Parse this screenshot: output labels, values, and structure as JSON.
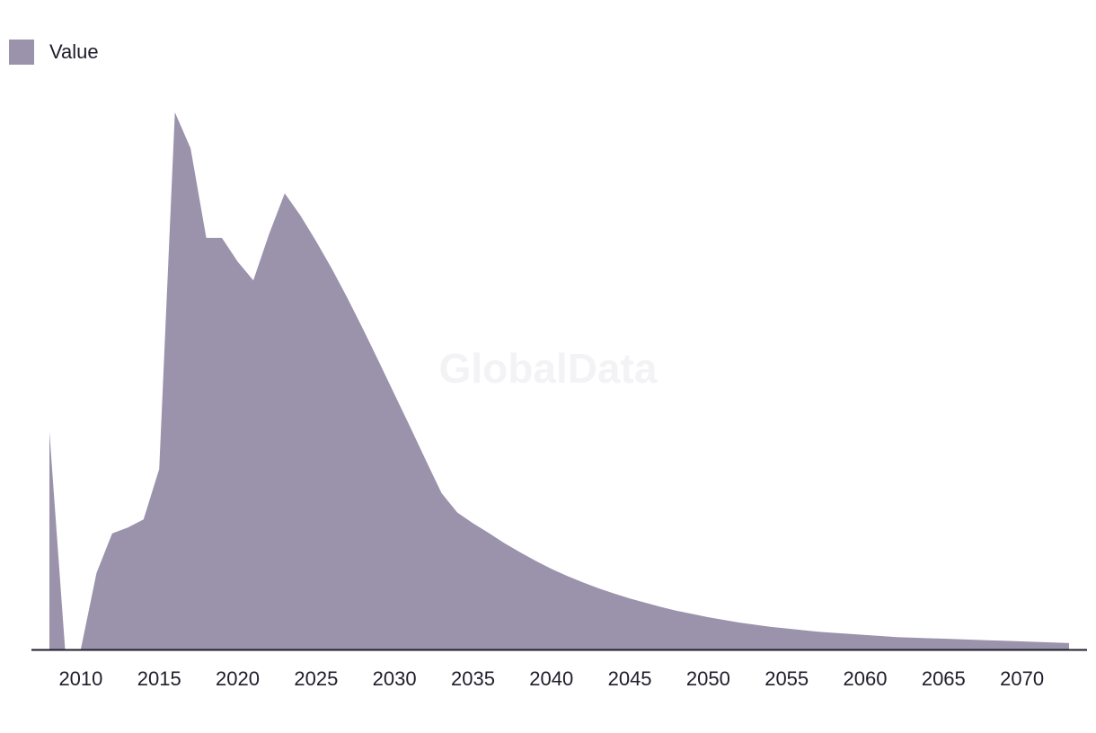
{
  "watermark": "GlobalData",
  "colors": {
    "area": "#9b92ab",
    "axis": "#1f1d2b"
  },
  "chart_data": {
    "type": "area",
    "legend": {
      "position": "top-left",
      "entries": [
        "Value"
      ]
    },
    "grid": false,
    "xlim": [
      2008,
      2073
    ],
    "ylim": [
      0,
      100
    ],
    "x_ticks": [
      2010,
      2015,
      2020,
      2025,
      2030,
      2035,
      2040,
      2045,
      2050,
      2055,
      2060,
      2065,
      2070
    ],
    "series": [
      {
        "name": "Value",
        "x": [
          2008,
          2009,
          2010,
          2011,
          2012,
          2013,
          2014,
          2015,
          2016,
          2017,
          2018,
          2019,
          2020,
          2021,
          2022,
          2023,
          2024,
          2025,
          2026,
          2027,
          2028,
          2029,
          2030,
          2031,
          2032,
          2033,
          2034,
          2035,
          2036,
          2037,
          2038,
          2039,
          2040,
          2041,
          2042,
          2043,
          2044,
          2045,
          2046,
          2047,
          2048,
          2049,
          2050,
          2051,
          2052,
          2053,
          2054,
          2055,
          2056,
          2057,
          2058,
          2059,
          2060,
          2061,
          2062,
          2063,
          2064,
          2065,
          2066,
          2067,
          2068,
          2069,
          2070,
          2071,
          2072,
          2073
        ],
        "values": [
          40.5,
          0,
          0,
          14.2,
          21.6,
          22.7,
          24.2,
          33.6,
          100,
          93.3,
          76.6,
          76.6,
          72.2,
          68.7,
          77.3,
          84.9,
          80.8,
          76,
          70.9,
          65.4,
          59.6,
          53.6,
          47.5,
          41.4,
          35.2,
          29.1,
          25.5,
          23.5,
          21.7,
          19.8,
          18.1,
          16.5,
          15,
          13.7,
          12.5,
          11.4,
          10.4,
          9.5,
          8.7,
          7.9,
          7.2,
          6.6,
          6,
          5.5,
          5,
          4.6,
          4.2,
          3.9,
          3.6,
          3.3,
          3.1,
          2.9,
          2.7,
          2.5,
          2.3,
          2.2,
          2.1,
          2,
          1.9,
          1.8,
          1.7,
          1.6,
          1.5,
          1.4,
          1.3,
          1.2
        ]
      }
    ]
  }
}
